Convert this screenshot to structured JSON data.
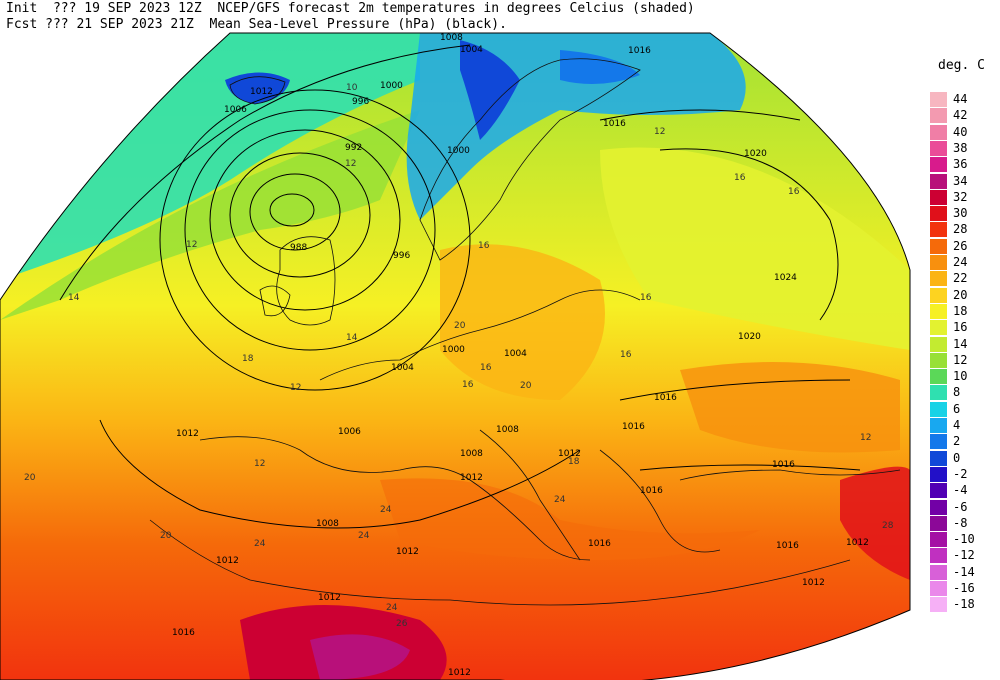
{
  "header": {
    "line1_left": "Init  ??? 19 SEP 2023 12Z",
    "line2_left": "Fcst ??? 21 SEP 2023 21Z",
    "line1_right": "NCEP/GFS forecast 2m temperatures in degrees Celcius (shaded)",
    "line2_right": "Mean Sea-Level Pressure (hPa) (black)."
  },
  "legend": {
    "title": "deg. C",
    "entries": [
      {
        "label": "44",
        "color": "#f7b6c0"
      },
      {
        "label": "42",
        "color": "#f39ab0"
      },
      {
        "label": "40",
        "color": "#f07ea6"
      },
      {
        "label": "38",
        "color": "#ea4c98"
      },
      {
        "label": "36",
        "color": "#d81b8c"
      },
      {
        "label": "34",
        "color": "#b8107a"
      },
      {
        "label": "32",
        "color": "#cc0033"
      },
      {
        "label": "30",
        "color": "#e0101a"
      },
      {
        "label": "28",
        "color": "#f2330e"
      },
      {
        "label": "26",
        "color": "#f56a0a"
      },
      {
        "label": "24",
        "color": "#f8900e"
      },
      {
        "label": "22",
        "color": "#fbb414"
      },
      {
        "label": "20",
        "color": "#fdd320"
      },
      {
        "label": "18",
        "color": "#f6f024"
      },
      {
        "label": "16",
        "color": "#e3f230"
      },
      {
        "label": "14",
        "color": "#c3eb30"
      },
      {
        "label": "12",
        "color": "#98e036"
      },
      {
        "label": "10",
        "color": "#5bd858"
      },
      {
        "label": "8",
        "color": "#2fe0b0"
      },
      {
        "label": "6",
        "color": "#18d2e6"
      },
      {
        "label": "4",
        "color": "#18a8f0"
      },
      {
        "label": "2",
        "color": "#1478ea"
      },
      {
        "label": "0",
        "color": "#1048d8"
      },
      {
        "label": "-2",
        "color": "#2210c8"
      },
      {
        "label": "-4",
        "color": "#5000b4"
      },
      {
        "label": "-6",
        "color": "#7200a6"
      },
      {
        "label": "-8",
        "color": "#8c0898"
      },
      {
        "label": "-10",
        "color": "#a410a4"
      },
      {
        "label": "-12",
        "color": "#c030c0"
      },
      {
        "label": "-14",
        "color": "#d860d8"
      },
      {
        "label": "-16",
        "color": "#ea88ea"
      },
      {
        "label": "-18",
        "color": "#f6b0f6"
      }
    ]
  },
  "isobar_labels": [
    "1008",
    "1004",
    "1016",
    "1012",
    "1006",
    "1000",
    "996",
    "992",
    "988",
    "996",
    "1000",
    "1004",
    "1000",
    "1004",
    "1012",
    "1006",
    "1008",
    "1008",
    "1012",
    "1016",
    "1016",
    "1016",
    "1016",
    "1012",
    "1012",
    "1008",
    "1012",
    "1016",
    "1020",
    "1020",
    "1024",
    "1016",
    "1012",
    "1012",
    "1016",
    "1016",
    "1012",
    "1012"
  ],
  "temp_labels": [
    "12",
    "14",
    "16",
    "18",
    "20",
    "20",
    "24",
    "24",
    "24",
    "12",
    "12",
    "10",
    "16",
    "16",
    "16",
    "14",
    "12",
    "16",
    "20",
    "12",
    "20",
    "26",
    "28",
    "24",
    "24",
    "12",
    "16",
    "16",
    "18"
  ]
}
